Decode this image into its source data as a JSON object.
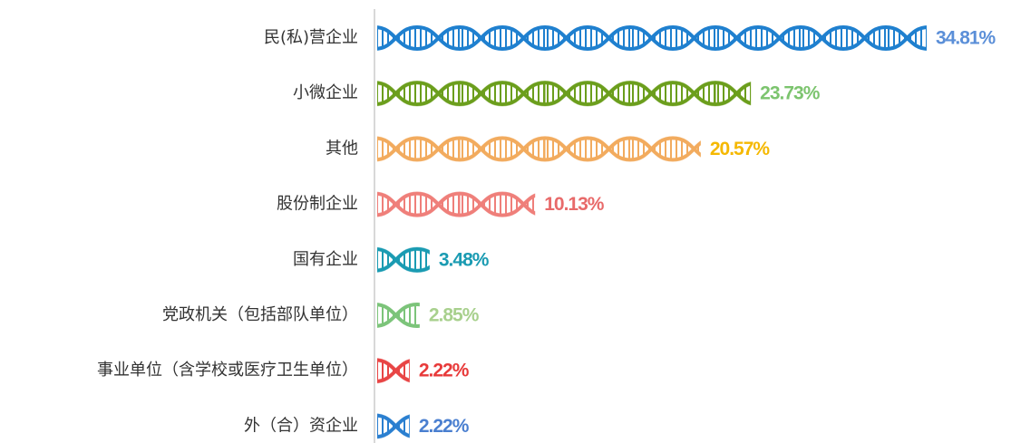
{
  "chart_data": {
    "type": "pictorial-bar",
    "categories": [
      "民(私)营企业",
      "小微企业",
      "其他",
      "股份制企业",
      "国有企业",
      "党政机关（包括部队单位）",
      "事业单位（含学校或医疗卫生单位）",
      "外（合）资企业"
    ],
    "values": [
      34.81,
      23.73,
      20.57,
      10.13,
      3.48,
      2.85,
      2.22,
      2.22
    ],
    "value_labels": [
      "34.81%",
      "23.73%",
      "20.57%",
      "10.13%",
      "3.48%",
      "2.85%",
      "2.22%",
      "2.22%"
    ],
    "colors": [
      "#1f80cf",
      "#6b9e1c",
      "#f2ab5e",
      "#ef7f7a",
      "#1a9bb2",
      "#7cc47a",
      "#e84545",
      "#2a7fd0"
    ],
    "label_colors": [
      "#5b8fd8",
      "#7cc46e",
      "#f5b800",
      "#e86a6a",
      "#1a9bb2",
      "#a8d08d",
      "#e83a3a",
      "#4a7fd0"
    ]
  }
}
